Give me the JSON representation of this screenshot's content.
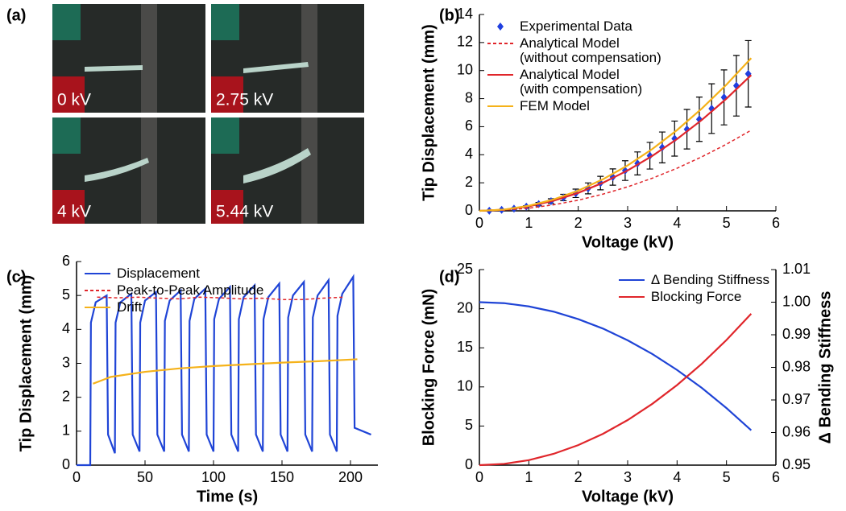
{
  "photo_panel": {
    "panel_label": "(a)",
    "labels": [
      "0 kV",
      "2.75 kV",
      "4 kV",
      "5.44 kV"
    ]
  },
  "chart_data": [
    {
      "type": "line",
      "panel_label": "(b)",
      "x_label": "Voltage (kV)",
      "y_label": "Tip Displacement (mm)",
      "xlim": [
        0,
        6
      ],
      "xticks": [
        0,
        1,
        2,
        3,
        4,
        5,
        6
      ],
      "ylim": [
        0,
        14
      ],
      "yticks": [
        0,
        2,
        4,
        6,
        8,
        10,
        12,
        14
      ],
      "legend": "upper left",
      "series": [
        {
          "name": "Experimental Data",
          "color": "#1f3fe0",
          "marker": "diamond",
          "line": false,
          "x": [
            0.2,
            0.45,
            0.7,
            0.95,
            1.2,
            1.45,
            1.7,
            1.95,
            2.2,
            2.45,
            2.7,
            2.95,
            3.2,
            3.45,
            3.7,
            3.95,
            4.2,
            4.45,
            4.7,
            4.95,
            5.2,
            5.44
          ],
          "values": [
            0.01,
            0.07,
            0.16,
            0.3,
            0.48,
            0.69,
            0.95,
            1.25,
            1.6,
            1.98,
            2.41,
            2.87,
            3.38,
            3.93,
            4.52,
            5.15,
            5.82,
            6.53,
            7.29,
            8.09,
            8.92,
            9.77
          ],
          "errors": [
            0.0,
            0.02,
            0.04,
            0.07,
            0.12,
            0.17,
            0.23,
            0.3,
            0.39,
            0.48,
            0.58,
            0.7,
            0.82,
            0.95,
            1.1,
            1.25,
            1.41,
            1.58,
            1.77,
            1.96,
            2.16,
            2.37
          ]
        },
        {
          "name": "Analytical Model\n(without compensation)",
          "color": "#e0262b",
          "dash": true,
          "line": true,
          "x": [
            0,
            0.5,
            1,
            1.5,
            2,
            2.5,
            3,
            3.5,
            4,
            4.5,
            5,
            5.5
          ],
          "values": [
            0,
            0.05,
            0.19,
            0.43,
            0.76,
            1.19,
            1.71,
            2.33,
            3.04,
            3.85,
            4.75,
            5.75
          ]
        },
        {
          "name": "Analytical Model\n(with compensation)",
          "color": "#e0262b",
          "line": true,
          "x": [
            0,
            0.5,
            1,
            1.5,
            2,
            2.5,
            3,
            3.5,
            4,
            4.5,
            5,
            5.5
          ],
          "values": [
            0,
            0.08,
            0.32,
            0.72,
            1.28,
            2.0,
            2.88,
            3.92,
            5.12,
            6.48,
            8.0,
            9.68
          ]
        },
        {
          "name": "FEM Model",
          "color": "#f5b21a",
          "line": true,
          "x": [
            0,
            0.5,
            1,
            1.5,
            2,
            2.5,
            3,
            3.5,
            4,
            4.5,
            5,
            5.5
          ],
          "values": [
            0,
            0.09,
            0.36,
            0.81,
            1.44,
            2.25,
            3.24,
            4.41,
            5.76,
            7.29,
            9.0,
            10.89
          ]
        }
      ]
    },
    {
      "type": "line",
      "panel_label": "(c)",
      "x_label": "Time (s)",
      "y_label": "Tip Displacement (mm)",
      "xlim": [
        0,
        220
      ],
      "xticks": [
        0,
        50,
        100,
        150,
        200
      ],
      "ylim": [
        0,
        6
      ],
      "yticks": [
        0,
        1,
        2,
        3,
        4,
        5,
        6
      ],
      "legend": "upper left",
      "series": [
        {
          "name": "Displacement",
          "color": "#1f44d6",
          "line": true,
          "x": [
            0,
            10,
            10.5,
            14,
            22,
            23,
            28,
            28.5,
            32,
            40,
            41,
            46,
            46.5,
            50,
            58,
            59,
            64,
            64.5,
            68,
            76,
            77,
            82,
            82.5,
            86,
            94,
            95,
            100,
            100.5,
            104,
            112,
            113,
            118,
            118.5,
            122,
            130,
            131,
            136,
            136.5,
            140,
            148,
            149,
            154,
            154.5,
            158,
            166,
            167,
            172,
            172.5,
            176,
            184,
            185,
            190,
            190.5,
            194,
            202,
            203,
            215
          ],
          "values": [
            0,
            0,
            4.2,
            4.8,
            5.0,
            0.9,
            0.35,
            4.2,
            4.8,
            5.05,
            0.9,
            0.4,
            4.2,
            4.85,
            5.1,
            0.9,
            0.4,
            4.25,
            4.85,
            5.15,
            0.9,
            0.4,
            4.25,
            4.9,
            5.2,
            0.9,
            0.4,
            4.3,
            4.9,
            5.25,
            0.9,
            0.4,
            4.3,
            4.95,
            5.3,
            0.9,
            0.4,
            4.3,
            4.95,
            5.35,
            0.9,
            0.4,
            4.35,
            5.0,
            5.4,
            0.9,
            0.4,
            4.35,
            5.0,
            5.45,
            0.9,
            0.4,
            4.4,
            5.05,
            5.55,
            1.1,
            0.9
          ]
        },
        {
          "name": "Peak-to-Peak Amplitude",
          "color": "#e0262b",
          "dash": true,
          "line": true,
          "x": [
            15,
            30,
            45,
            60,
            75,
            90,
            105,
            120,
            135,
            150,
            165,
            180,
            195
          ],
          "values": [
            4.95,
            4.93,
            4.95,
            4.92,
            4.9,
            4.95,
            4.93,
            4.9,
            4.92,
            4.88,
            4.88,
            4.92,
            4.95
          ]
        },
        {
          "name": "Drift",
          "color": "#f5b21a",
          "line": true,
          "x": [
            12,
            25,
            50,
            75,
            100,
            125,
            150,
            175,
            205
          ],
          "values": [
            2.4,
            2.6,
            2.75,
            2.85,
            2.92,
            2.97,
            3.02,
            3.06,
            3.12
          ]
        }
      ]
    },
    {
      "type": "line",
      "panel_label": "(d)",
      "x_label": "Voltage (kV)",
      "y_label": "Blocking Force (mN)",
      "y2_label": "Δ Bending Stiffness",
      "xlim": [
        0,
        6
      ],
      "xticks": [
        0,
        1,
        2,
        3,
        4,
        5,
        6
      ],
      "ylim": [
        0,
        25
      ],
      "yticks": [
        0,
        5,
        10,
        15,
        20,
        25
      ],
      "y2lim": [
        0.95,
        1.01
      ],
      "y2ticks": [
        0.95,
        0.96,
        0.97,
        0.98,
        0.99,
        {
          "value": 1,
          "label": "1.00"
        },
        1.01
      ],
      "legend": "upper right",
      "series": [
        {
          "name": "Δ  Bending Stiffness",
          "color": "#1f44d6",
          "line": true,
          "axis": "y2",
          "x": [
            0,
            0.5,
            1,
            1.5,
            2,
            2.5,
            3,
            3.5,
            4,
            4.5,
            5,
            5.5
          ],
          "values": [
            1.0,
            0.9997,
            0.9987,
            0.9971,
            0.9948,
            0.9919,
            0.9883,
            0.9841,
            0.9792,
            0.9737,
            0.9675,
            0.9607
          ]
        },
        {
          "name": "Blocking Force",
          "color": "#e0262b",
          "line": true,
          "x": [
            0,
            0.5,
            1,
            1.5,
            2,
            2.5,
            3,
            3.5,
            4,
            4.5,
            5,
            5.5
          ],
          "values": [
            0,
            0.16,
            0.64,
            1.44,
            2.56,
            4.0,
            5.76,
            7.84,
            10.24,
            12.96,
            16.0,
            19.36
          ]
        }
      ]
    }
  ]
}
